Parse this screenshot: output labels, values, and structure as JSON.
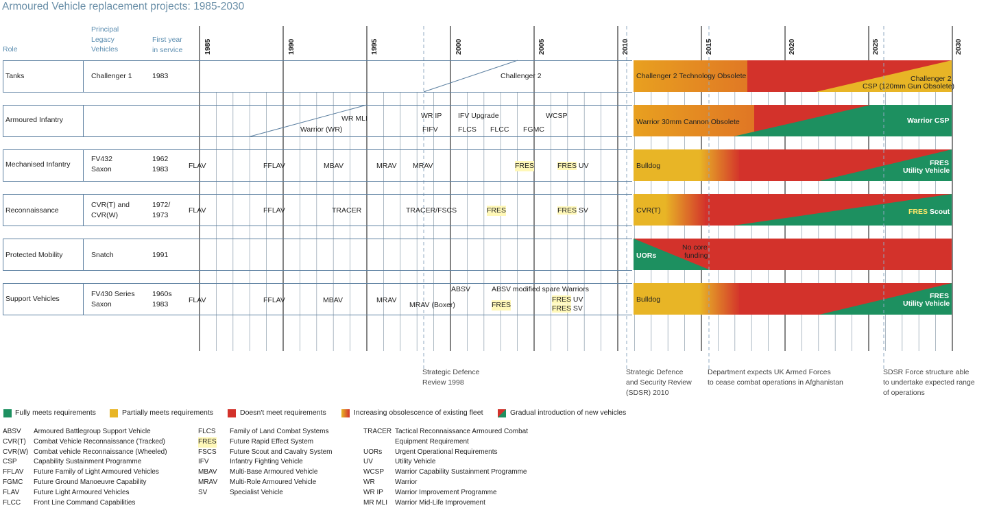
{
  "title": "Armoured Vehicle replacement projects: 1985-2030",
  "headers": {
    "role": "Role",
    "legacy_l1": "Principal",
    "legacy_l2": "Legacy",
    "legacy_l3": "Vehicles",
    "first_l1": "First year",
    "first_l2": "in service"
  },
  "years": [
    "1985",
    "1990",
    "1995",
    "2000",
    "2005",
    "2010",
    "2015",
    "2020",
    "2025",
    "2030"
  ],
  "rows": {
    "tanks": {
      "role": "Tanks",
      "legacy": "Challenger 1",
      "year": "1983",
      "projects": {
        "ch2": "Challenger 2"
      },
      "status": {
        "a": "Challenger 2 Technology Obsolete",
        "b1": "Challenger 2",
        "b2": "CSP (120mm Gun Obsolete)"
      }
    },
    "infantry": {
      "role": "Armoured Infantry",
      "projects": {
        "wrmli": "WR MLI",
        "wr": "Warrior (WR)",
        "wrip": "WR IP",
        "fifv": "FIFV",
        "ifv": "IFV Upgrade",
        "flcs": "FLCS",
        "flcc": "FLCC",
        "wcsp": "WCSP",
        "fgmc": "FGMC"
      },
      "status": {
        "a": "Warrior 30mm Cannon Obsolete",
        "b": "Warrior CSP"
      }
    },
    "mechanised": {
      "role": "Mechanised Infantry",
      "legacy1": "FV432",
      "legacy2": "Saxon",
      "year1": "1962",
      "year2": "1983",
      "projects": {
        "flav": "FLAV",
        "fflav": "FFLAV",
        "mbav": "MBAV",
        "mrav1": "MRAV",
        "mrav2": "MRAV",
        "fres": "FRES",
        "fres2": "FRES",
        "uv": " UV"
      },
      "status": {
        "a": "Bulldog",
        "b1": "FRES",
        "b2": "Utility Vehicle"
      }
    },
    "recon": {
      "role": "Reconnaissance",
      "legacy1": "CVR(T) and",
      "legacy2": "CVR(W)",
      "year1": "1972/",
      "year2": "1973",
      "projects": {
        "flav": "FLAV",
        "fflav": "FFLAV",
        "tracer": "TRACER",
        "tracerf": "TRACER/FSCS",
        "fres": "FRES",
        "fres2": "FRES",
        "sv": " SV"
      },
      "status": {
        "a": "CVR(T)",
        "b1": "FRES",
        "b2": " Scout"
      }
    },
    "protected": {
      "role": "Protected Mobility",
      "legacy": "Snatch",
      "year": "1991",
      "status": {
        "a": "UORs",
        "b1": "No core",
        "b2": "funding"
      }
    },
    "support": {
      "role": "Support Vehicles",
      "legacy1": "FV430 Series",
      "legacy2": "Saxon",
      "year1": "1960s",
      "year2": "1983",
      "projects": {
        "flav": "FLAV",
        "fflav": "FFLAV",
        "mbav": "MBAV",
        "mrav": "MRAV",
        "mravb": "MRAV (Boxer)",
        "absv": "ABSV",
        "absvm": "ABSV modified spare Warriors",
        "fres": "FRES",
        "fres2": "FRES",
        "uv": " UV",
        "fres3": "FRES",
        "sv": " SV"
      },
      "status": {
        "a": "Bulldog",
        "b1": "FRES",
        "b2": "Utility Vehicle"
      }
    }
  },
  "notes": {
    "sdr1": "Strategic Defence",
    "sdr2": "Review 1998",
    "sdsr1": "Strategic Defence",
    "sdsr2": "and Security Review",
    "sdsr3": "(SDSR) 2010",
    "afg1": "Department expects UK Armed Forces",
    "afg2": "to cease combat operations in Afghanistan",
    "force1": "SDSR Force structure able",
    "force2": "to undertake expected range",
    "force3": "of operations"
  },
  "legend": [
    {
      "label": "Fully meets requirements",
      "color": "#1d9060"
    },
    {
      "label": "Partially meets requirements",
      "color": "#e8b526"
    },
    {
      "label": "Doesn't meet requirements",
      "color": "#d3322b"
    },
    {
      "label": "Increasing obsolescence of existing fleet",
      "color": "gradient-yellow-red"
    },
    {
      "label": "Gradual introduction of new vehicles",
      "color": "gradient-red-green"
    }
  ],
  "abbreviations": {
    "col1": [
      {
        "k": "ABSV",
        "v": "Armoured Battlegroup Support Vehicle"
      },
      {
        "k": "CVR(T)",
        "v": "Combat Vehicle Reconnaissance (Tracked)"
      },
      {
        "k": "CVR(W)",
        "v": "Combat vehicle Reconnaissance (Wheeled)"
      },
      {
        "k": "CSP",
        "v": "Capability Sustainment Programme"
      },
      {
        "k": "FFLAV",
        "v": "Future Family of Light Armoured Vehicles"
      },
      {
        "k": "FGMC",
        "v": "Future Ground Manoeuvre Capability"
      },
      {
        "k": "FLAV",
        "v": "Future Light Armoured Vehicles"
      },
      {
        "k": "FLCC",
        "v": "Front Line Command Capabilities"
      }
    ],
    "col2": [
      {
        "k": "FLCS",
        "v": "Family of Land Combat Systems"
      },
      {
        "k": "FRES",
        "v": "Future Rapid Effect System"
      },
      {
        "k": "FSCS",
        "v": "Future Scout and Cavalry System"
      },
      {
        "k": "IFV",
        "v": "Infantry Fighting Vehicle"
      },
      {
        "k": "MBAV",
        "v": "Multi-Base Armoured Vehicle"
      },
      {
        "k": "MRAV",
        "v": "Multi-Role Armoured Vehicle"
      },
      {
        "k": "SV",
        "v": "Specialist Vehicle"
      }
    ],
    "col3": [
      {
        "k": "TRACER",
        "v": "Tactical Reconnaissance Armoured Combat"
      },
      {
        "k": "",
        "v": "Equipment Requirement"
      },
      {
        "k": "UORs",
        "v": "Urgent Operational Requirements"
      },
      {
        "k": "UV",
        "v": "Utility Vehicle"
      },
      {
        "k": "WCSP",
        "v": "Warrior Capability Sustainment Programme"
      },
      {
        "k": "WR",
        "v": "Warrior"
      },
      {
        "k": "WR IP",
        "v": "Warrior Improvement Programme"
      },
      {
        "k": "MR MLI",
        "v": "Warrior Mid-Life Improvement"
      }
    ]
  }
}
